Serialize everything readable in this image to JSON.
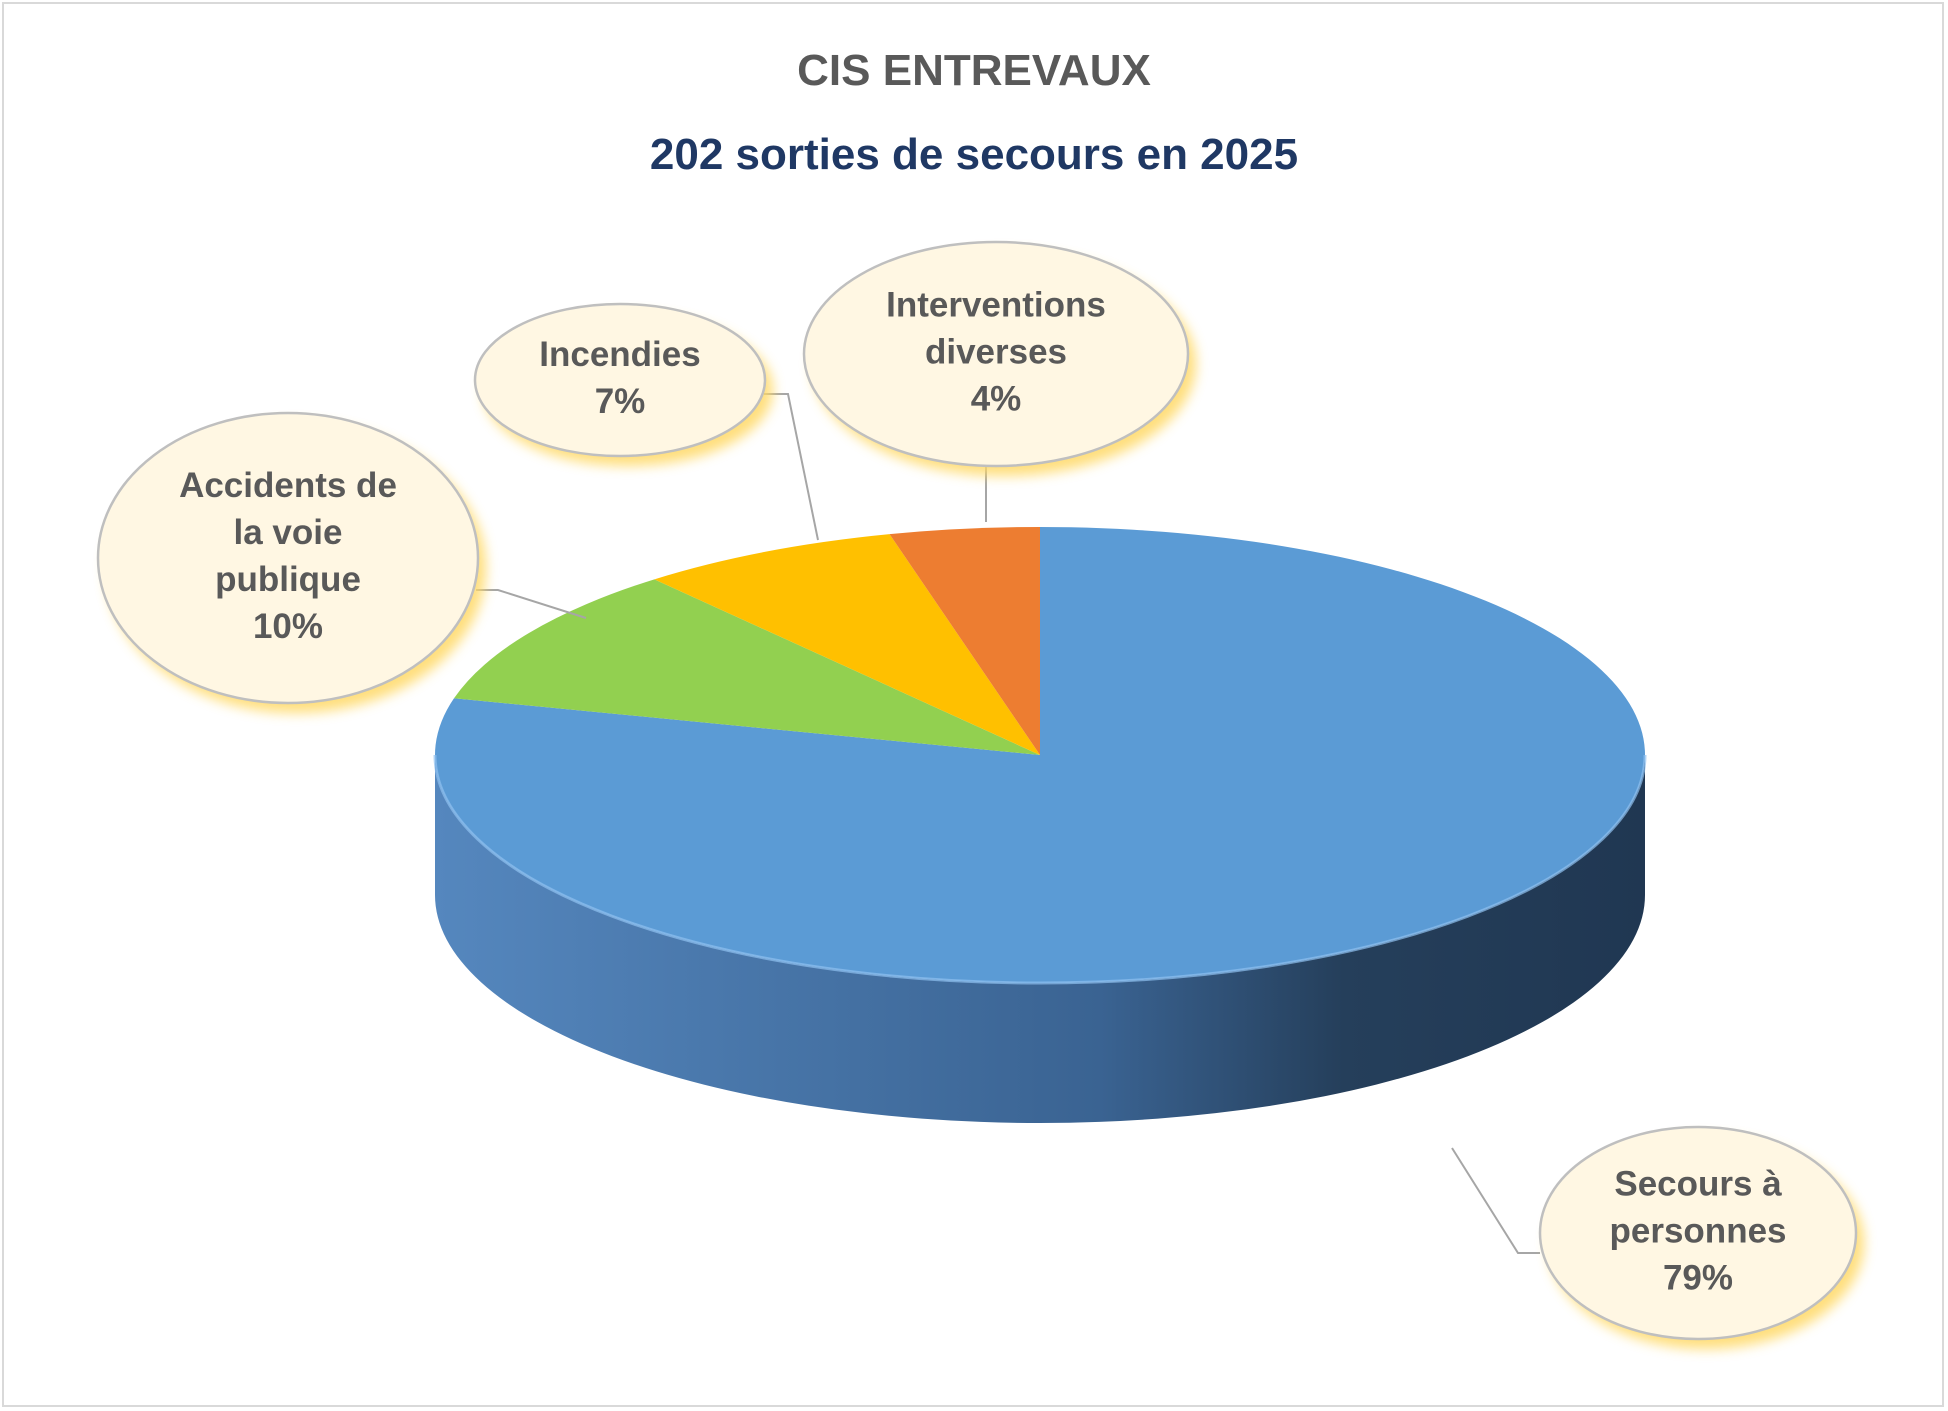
{
  "colors": {
    "title": "#595959",
    "subtitle": "#1F3864",
    "bubble_fill": "#FFF7E3",
    "bubble_stroke": "#BFBFBF",
    "bubble_glow": "#FFD966",
    "leader": "#A6A6A6",
    "label_text": "#595959"
  },
  "chart_data": {
    "type": "pie",
    "style": "3d",
    "title": "CIS ENTREVAUX",
    "subtitle": "202 sorties de secours en 2025",
    "legend": "none",
    "categories": [
      "Secours à personnes",
      "Accidents de la voie publique",
      "Incendies",
      "Interventions diverses"
    ],
    "values": [
      79,
      10,
      7,
      4
    ],
    "colors": [
      "#5B9BD5",
      "#92D050",
      "#FFC000",
      "#ED7D31"
    ],
    "data_labels": [
      {
        "lines": [
          "Secours à",
          "personnes"
        ],
        "value": "79%"
      },
      {
        "lines": [
          "Accidents de",
          "la voie",
          "publique"
        ],
        "value": "10%"
      },
      {
        "lines": [
          "Incendies"
        ],
        "value": "7%"
      },
      {
        "lines": [
          "Interventions",
          "diverses"
        ],
        "value": "4%"
      }
    ]
  }
}
